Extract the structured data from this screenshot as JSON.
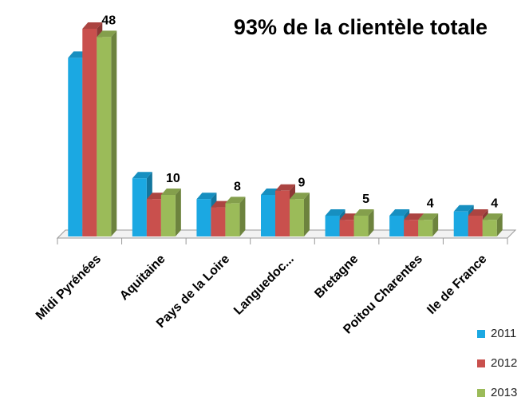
{
  "chart_data": {
    "type": "bar3d",
    "title": "93% de la clientèle totale",
    "categories": [
      "Midi Pyrénées",
      "Aquitaine",
      "Pays de la Loire",
      "Languedoc...",
      "Bretagne",
      "Poitou Charentes",
      "Ile de France"
    ],
    "series": [
      {
        "name": "2011",
        "color": "#1ba8e2",
        "values": [
          43,
          14,
          9,
          10,
          5,
          5,
          6
        ]
      },
      {
        "name": "2012",
        "color": "#c9504d",
        "values": [
          50,
          9,
          7,
          11,
          4,
          4,
          5
        ]
      },
      {
        "name": "2013",
        "color": "#9bbb59",
        "values": [
          48,
          10,
          8,
          9,
          5,
          4,
          4
        ],
        "show_labels": true
      }
    ],
    "legend": "bottom-right"
  }
}
